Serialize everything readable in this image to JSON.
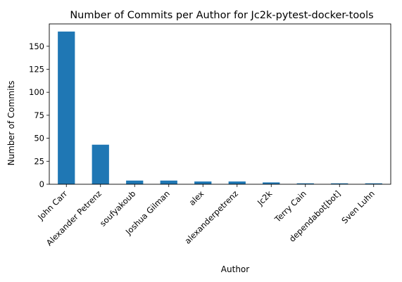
{
  "chart_data": {
    "type": "bar",
    "title": "Number of Commits per Author for Jc2k-pytest-docker-tools",
    "xlabel": "Author",
    "ylabel": "Number of Commits",
    "categories": [
      "John Carr",
      "Alexander Petrenz",
      "soufyakoub",
      "Joshua Gilman",
      "alex",
      "alexanderpetrenz",
      "Jc2k",
      "Terry Cain",
      "dependabot[bot]",
      "Sven Luhn"
    ],
    "values": [
      166,
      43,
      4,
      4,
      3,
      3,
      2,
      1,
      1,
      1
    ],
    "ylim": [
      0,
      174.3
    ],
    "yticks": [
      0,
      25,
      50,
      75,
      100,
      125,
      150
    ],
    "grid": false,
    "legend": "none",
    "bar_color": "#1f77b4"
  }
}
